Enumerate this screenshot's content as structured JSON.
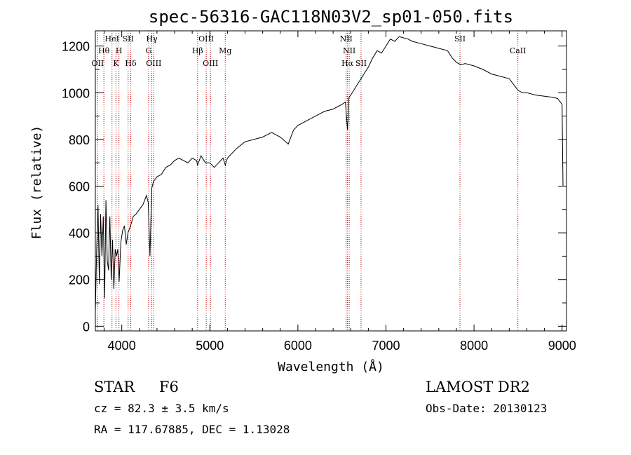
{
  "chart_data": {
    "type": "line",
    "title": "spec-56316-GAC118N03V2_sp01-050.fits",
    "xlabel": "Wavelength (Å)",
    "ylabel": "Flux (relative)",
    "xlim": [
      3700,
      9050
    ],
    "ylim": [
      -20,
      1265
    ],
    "x_ticks": [
      4000,
      5000,
      6000,
      7000,
      8000,
      9000
    ],
    "y_ticks": [
      0,
      200,
      400,
      600,
      800,
      1000,
      1200
    ],
    "grid": false,
    "series": [
      {
        "x": [
          3700,
          3715,
          3730,
          3745,
          3760,
          3775,
          3790,
          3805,
          3820,
          3835,
          3850,
          3865,
          3880,
          3895,
          3910,
          3925,
          3940,
          3955,
          3970,
          3990,
          4010,
          4030,
          4050,
          4070,
          4100,
          4130,
          4160,
          4200,
          4240,
          4280,
          4300,
          4320,
          4340,
          4360,
          4400,
          4450,
          4500,
          4550,
          4600,
          4650,
          4700,
          4750,
          4800,
          4850,
          4861,
          4900,
          4950,
          5000,
          5050,
          5100,
          5150,
          5175,
          5200,
          5300,
          5400,
          5500,
          5600,
          5700,
          5800,
          5890,
          5950,
          6000,
          6100,
          6200,
          6300,
          6400,
          6500,
          6540,
          6563,
          6580,
          6600,
          6650,
          6700,
          6750,
          6800,
          6850,
          6900,
          6950,
          7000,
          7050,
          7100,
          7150,
          7200,
          7250,
          7300,
          7400,
          7500,
          7600,
          7700,
          7750,
          7800,
          7850,
          7900,
          8000,
          8100,
          8200,
          8300,
          8400,
          8500,
          8550,
          8600,
          8700,
          8800,
          8900,
          8950,
          9000,
          9010
        ],
        "y": [
          60,
          330,
          520,
          180,
          480,
          300,
          470,
          120,
          540,
          280,
          240,
          470,
          200,
          370,
          160,
          330,
          300,
          330,
          190,
          360,
          410,
          430,
          350,
          400,
          430,
          470,
          480,
          500,
          520,
          560,
          530,
          300,
          590,
          620,
          640,
          650,
          680,
          690,
          710,
          720,
          710,
          700,
          720,
          710,
          690,
          730,
          700,
          700,
          680,
          700,
          720,
          690,
          720,
          760,
          790,
          800,
          810,
          830,
          810,
          780,
          840,
          860,
          880,
          900,
          920,
          930,
          950,
          960,
          840,
          980,
          990,
          1020,
          1050,
          1080,
          1110,
          1150,
          1180,
          1170,
          1200,
          1230,
          1220,
          1240,
          1235,
          1230,
          1220,
          1210,
          1200,
          1190,
          1180,
          1150,
          1130,
          1120,
          1125,
          1115,
          1100,
          1080,
          1070,
          1060,
          1010,
          1000,
          1000,
          990,
          985,
          980,
          975,
          950,
          600
        ]
      }
    ],
    "lines": [
      {
        "x": 3727,
        "labels": [
          "OII"
        ],
        "row": [
          2
        ]
      },
      {
        "x": 3797,
        "labels": [
          "Hθ"
        ],
        "row": [
          1
        ]
      },
      {
        "x": 3889,
        "labels": [
          "HeI"
        ],
        "row": [
          0
        ]
      },
      {
        "x": 3934,
        "labels": [
          "K"
        ],
        "row": [
          2
        ]
      },
      {
        "x": 3968,
        "labels": [
          "H"
        ],
        "row": [
          1
        ]
      },
      {
        "x": 4072,
        "labels": [
          "SII"
        ],
        "row": [
          0
        ]
      },
      {
        "x": 4102,
        "labels": [
          "Hδ"
        ],
        "row": [
          2
        ]
      },
      {
        "x": 4305,
        "labels": [
          "G"
        ],
        "row": [
          1
        ]
      },
      {
        "x": 4341,
        "labels": [
          "Hγ"
        ],
        "row": [
          0
        ]
      },
      {
        "x": 4363,
        "labels": [
          "OIII"
        ],
        "row": [
          2
        ]
      },
      {
        "x": 4861,
        "labels": [
          "Hβ"
        ],
        "row": [
          1
        ]
      },
      {
        "x": 4959,
        "labels": [
          "OIII"
        ],
        "row": [
          0
        ]
      },
      {
        "x": 5007,
        "labels": [
          "OIII"
        ],
        "row": [
          2
        ]
      },
      {
        "x": 5175,
        "labels": [
          "Mg"
        ],
        "row": [
          1
        ]
      },
      {
        "x": 6548,
        "labels": [
          "NII"
        ],
        "row": [
          0
        ]
      },
      {
        "x": 6563,
        "labels": [
          "Hα"
        ],
        "row": [
          2
        ]
      },
      {
        "x": 6583,
        "labels": [
          "NII"
        ],
        "row": [
          1
        ]
      },
      {
        "x": 6717,
        "labels": [
          "SII"
        ],
        "row": [
          2
        ]
      },
      {
        "x": 7840,
        "labels": [
          "SII"
        ],
        "row": [
          0
        ]
      },
      {
        "x": 8498,
        "labels": [
          "CaII"
        ],
        "row": [
          1
        ]
      }
    ]
  },
  "info": {
    "class": "STAR",
    "subclass": "F6",
    "survey": "LAMOST DR2",
    "cz": "cz = 82.3 ± 3.5 km/s",
    "obs_date": "Obs-Date: 20130123",
    "coords": "RA = 117.67885, DEC =    1.13028"
  },
  "colors": {
    "spectrum": "#000000",
    "line_markers": "#c00000"
  }
}
